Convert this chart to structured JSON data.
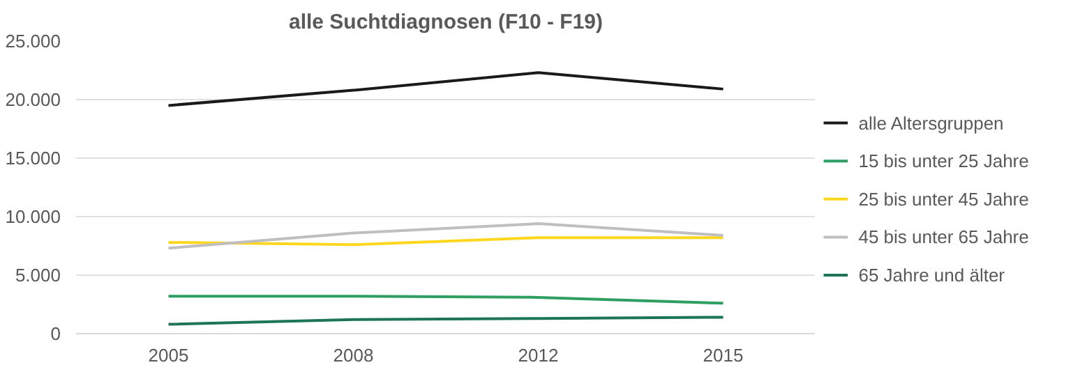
{
  "chart_data": {
    "type": "line",
    "title": "alle Suchtdiagnosen (F10 - F19)",
    "categories": [
      "2005",
      "2008",
      "2012",
      "2015"
    ],
    "series": [
      {
        "name": "alle Altersgruppen",
        "color": "#1a1a1a",
        "values": [
          19500,
          20800,
          22300,
          20900
        ]
      },
      {
        "name": "15 bis unter 25 Jahre",
        "color": "#2e9e62",
        "values": [
          3200,
          3200,
          3100,
          2600
        ]
      },
      {
        "name": "25 bis unter 45 Jahre",
        "color": "#ffd71e",
        "values": [
          7800,
          7600,
          8200,
          8200
        ]
      },
      {
        "name": "45 bis unter 65 Jahre",
        "color": "#bfbfbf",
        "values": [
          7300,
          8600,
          9400,
          8400
        ]
      },
      {
        "name": "65 Jahre und älter",
        "color": "#1d7558",
        "values": [
          800,
          1200,
          1300,
          1400
        ]
      }
    ],
    "ylim": [
      0,
      25000
    ],
    "yticks": [
      0,
      {
        "value": 5000,
        "label": "5.000"
      },
      {
        "value": 10000,
        "label": "10.000"
      },
      {
        "value": 15000,
        "label": "15.000"
      },
      {
        "value": 20000,
        "label": "20.000"
      },
      {
        "value": 25000,
        "label": "25.000"
      }
    ],
    "grid": "y",
    "legend": "right",
    "marker": "none",
    "line_style": "solid"
  }
}
